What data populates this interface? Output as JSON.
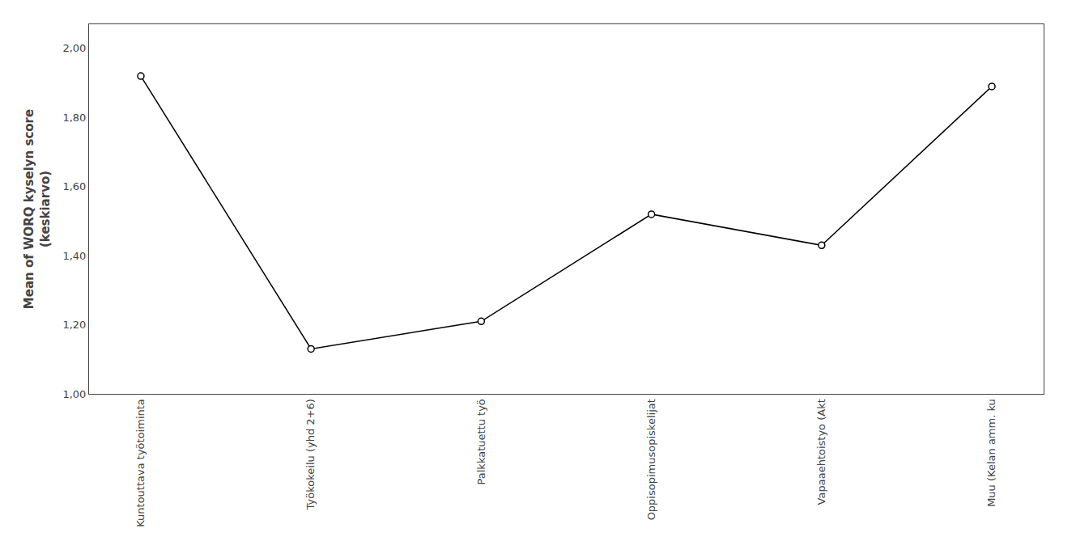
{
  "chart_data": {
    "type": "line",
    "categories": [
      "Kuntouttava työtoiminta",
      "Työkokeilu (yhd 2+6)",
      "Palkkatuettu työ",
      "Oppisopimusopiskelijat",
      "Vapaaehtoistyo (Akt",
      "Muu (Kelan amm. ku"
    ],
    "values": [
      1.92,
      1.13,
      1.21,
      1.52,
      1.43,
      1.89
    ],
    "ylabel": "Mean of WORQ kyselyn score\n(keskiarvo)",
    "ylim": [
      1.0,
      2.07
    ],
    "yticks": [
      {
        "value": 1.0,
        "label": "1,00"
      },
      {
        "value": 1.2,
        "label": "1,20"
      },
      {
        "value": 1.4,
        "label": "1,40"
      },
      {
        "value": 1.6,
        "label": "1,60"
      },
      {
        "value": 1.8,
        "label": "1,80"
      },
      {
        "value": 2.0,
        "label": "2,00"
      }
    ],
    "color": "#000000",
    "marker": "circle",
    "grid": false
  }
}
